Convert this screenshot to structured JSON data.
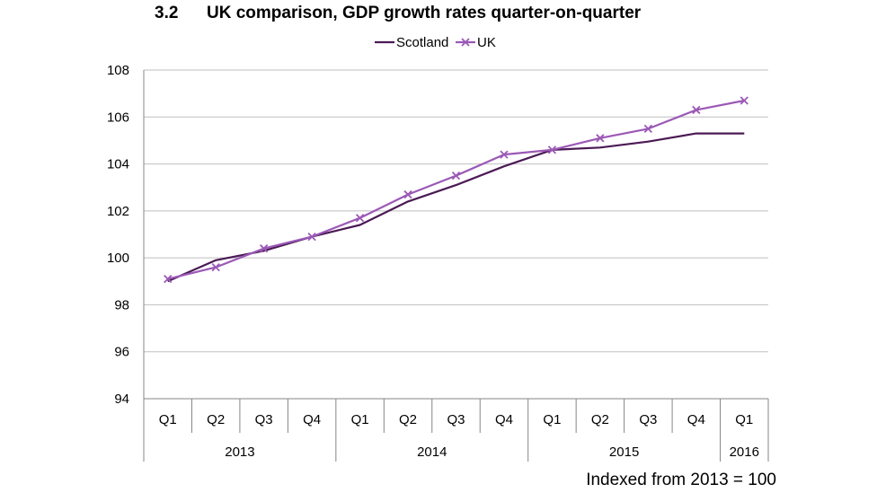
{
  "figure": {
    "number": "3.2",
    "title": "UK comparison, GDP growth rates quarter-on-quarter",
    "footnote": "Indexed from 2013  = 100"
  },
  "colors": {
    "scotland": "#4b1a55",
    "uk": "#9b59b6",
    "grid": "#bfbfbf",
    "axis": "#868686"
  },
  "chart_data": {
    "type": "line",
    "title": "",
    "xlabel": "",
    "ylabel": "",
    "ylim": [
      94,
      108
    ],
    "yticks": [
      94,
      96,
      98,
      100,
      102,
      104,
      106,
      108
    ],
    "grid": true,
    "legend_position": "top-center",
    "categories": [
      "Q1",
      "Q2",
      "Q3",
      "Q4",
      "Q1",
      "Q2",
      "Q3",
      "Q4",
      "Q1",
      "Q2",
      "Q3",
      "Q4",
      "Q1"
    ],
    "year_groups": [
      {
        "label": "2013",
        "count": 4
      },
      {
        "label": "2014",
        "count": 4
      },
      {
        "label": "2015",
        "count": 4
      },
      {
        "label": "2016",
        "count": 1
      }
    ],
    "series": [
      {
        "name": "Scotland",
        "marker": "none",
        "values": [
          99.0,
          99.9,
          100.3,
          100.9,
          101.4,
          102.4,
          103.1,
          103.9,
          104.6,
          104.7,
          104.95,
          105.3,
          105.3
        ]
      },
      {
        "name": "UK",
        "marker": "x",
        "values": [
          99.1,
          99.6,
          100.4,
          100.9,
          101.7,
          102.7,
          103.5,
          104.4,
          104.6,
          105.1,
          105.5,
          106.3,
          106.7
        ]
      }
    ]
  }
}
